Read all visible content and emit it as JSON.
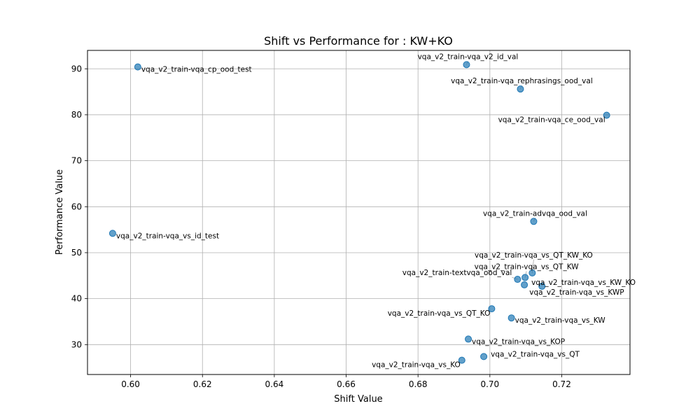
{
  "chart_data": {
    "type": "scatter",
    "title": "Shift vs Performance for : KW+KO",
    "xlabel": "Shift Value",
    "ylabel": "Performance Value",
    "xlim": [
      0.588,
      0.739
    ],
    "ylim": [
      23.5,
      94.0
    ],
    "xticks": [
      "0.60",
      "0.62",
      "0.64",
      "0.66",
      "0.68",
      "0.70",
      "0.72"
    ],
    "xtick_values": [
      0.6,
      0.62,
      0.64,
      0.66,
      0.68,
      0.7,
      0.72
    ],
    "yticks": [
      "30",
      "40",
      "50",
      "60",
      "70",
      "80",
      "90"
    ],
    "ytick_values": [
      30,
      40,
      50,
      60,
      70,
      80,
      90
    ],
    "grid": true,
    "marker_color": "#1f77b4",
    "points": [
      {
        "label": "vqa_v2_train-vqa_v2_id_val",
        "x": 0.6935,
        "y": 90.9,
        "label_pos": "above"
      },
      {
        "label": "vqa_v2_train-vqa_cp_ood_test",
        "x": 0.602,
        "y": 90.4,
        "label_pos": "right-below"
      },
      {
        "label": "vqa_v2_train-vqa_rephrasings_ood_val",
        "x": 0.7085,
        "y": 85.6,
        "label_pos": "above"
      },
      {
        "label": "vqa_v2_train-vqa_ce_ood_val",
        "x": 0.7325,
        "y": 79.9,
        "label_pos": "below-left"
      },
      {
        "label": "vqa_v2_train-advqa_ood_val",
        "x": 0.7122,
        "y": 56.8,
        "label_pos": "above"
      },
      {
        "label": "vqa_v2_train-vqa_vs_id_test",
        "x": 0.595,
        "y": 54.2,
        "label_pos": "right-below"
      },
      {
        "label": "vqa_v2_train-vqa_vs_QT_KW_KO",
        "x": 0.7118,
        "y": 45.6,
        "label_pos": "above"
      },
      {
        "label": "vqa_v2_train-vqa_vs_QT_KW",
        "x": 0.7098,
        "y": 44.6,
        "label_pos": "above"
      },
      {
        "label": "vqa_v2_train-textvqa_ood_val",
        "x": 0.7077,
        "y": 44.2,
        "label_pos": "left-above"
      },
      {
        "label": "vqa_v2_train-vqa_vs_KW_KO",
        "x": 0.7096,
        "y": 43.0,
        "label_pos": "right"
      },
      {
        "label": "vqa_v2_train-vqa_vs_KWP",
        "x": 0.7145,
        "y": 42.7,
        "label_pos": "below"
      },
      {
        "label": "vqa_v2_train-vqa_vs_QT_KO",
        "x": 0.7005,
        "y": 37.8,
        "label_pos": "below-left"
      },
      {
        "label": "vqa_v2_train-vqa_vs_KW",
        "x": 0.706,
        "y": 35.8,
        "label_pos": "right-below"
      },
      {
        "label": "vqa_v2_train-vqa_vs_KOP",
        "x": 0.694,
        "y": 31.2,
        "label_pos": "right-below"
      },
      {
        "label": "vqa_v2_train-vqa_vs_QT",
        "x": 0.6983,
        "y": 27.4,
        "label_pos": "right"
      },
      {
        "label": "vqa_v2_train-vqa_vs_KO",
        "x": 0.6922,
        "y": 26.6,
        "label_pos": "below-left"
      }
    ]
  }
}
